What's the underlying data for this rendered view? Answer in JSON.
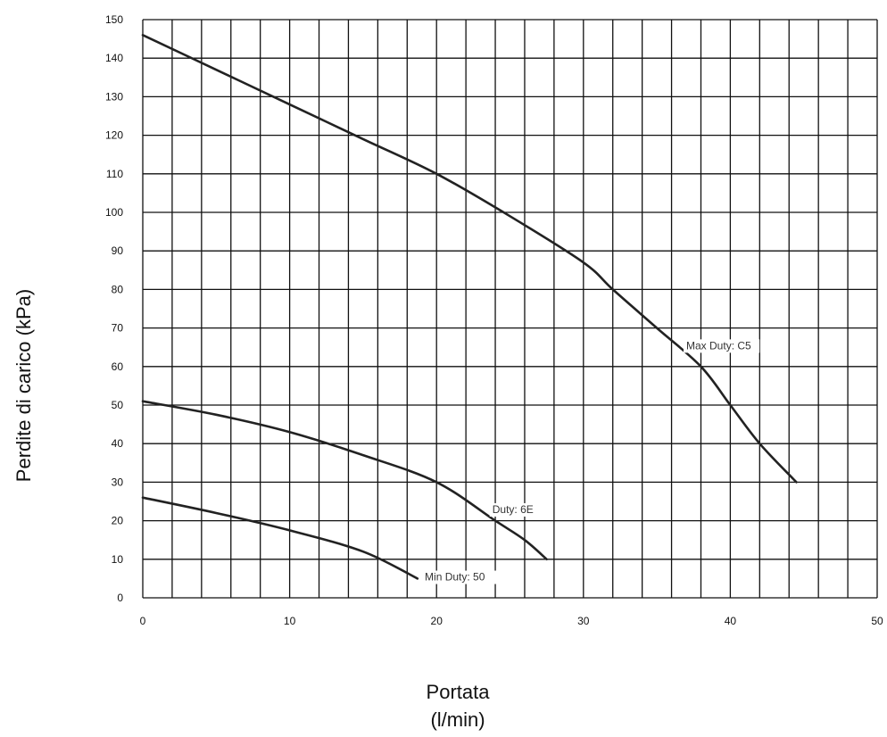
{
  "chart_data": {
    "type": "line",
    "title": "",
    "xlabel": "Portata",
    "xlabel_unit": "(l/min)",
    "ylabel": "Perdite di carico (kPa)",
    "xlim": [
      0,
      50
    ],
    "ylim": [
      0,
      150
    ],
    "x_ticks": [
      "0",
      "10",
      "20",
      "30",
      "40",
      "50"
    ],
    "y_ticks": [
      "0",
      "10",
      "20",
      "30",
      "40",
      "50",
      "60",
      "70",
      "80",
      "90",
      "100",
      "110",
      "120",
      "130",
      "140",
      "150"
    ],
    "grid": true,
    "series": [
      {
        "name": "Max Duty: C5",
        "points": [
          [
            0,
            146
          ],
          [
            5,
            137
          ],
          [
            10,
            128
          ],
          [
            15,
            119
          ],
          [
            20,
            110
          ],
          [
            25,
            99
          ],
          [
            30,
            87
          ],
          [
            32,
            80
          ],
          [
            35,
            70
          ],
          [
            38,
            60
          ],
          [
            40,
            50
          ],
          [
            42,
            40
          ],
          [
            44.5,
            30
          ]
        ]
      },
      {
        "name": "Duty: 6E",
        "points": [
          [
            0,
            51
          ],
          [
            5,
            47.5
          ],
          [
            10,
            43
          ],
          [
            15,
            37
          ],
          [
            20,
            30
          ],
          [
            24,
            20
          ],
          [
            26,
            15
          ],
          [
            27.5,
            10
          ]
        ]
      },
      {
        "name": "Min Duty: 50",
        "points": [
          [
            0,
            26
          ],
          [
            5,
            22
          ],
          [
            10,
            17.5
          ],
          [
            15,
            12
          ],
          [
            18.7,
            5
          ]
        ]
      }
    ]
  },
  "colors": {
    "line": "#222222",
    "grid": "#111111"
  }
}
